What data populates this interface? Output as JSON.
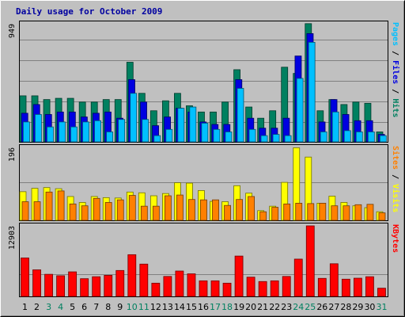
{
  "chart_data": {
    "type": "bar",
    "title": "Daily usage for October 2009",
    "categories": [
      "1",
      "2",
      "3",
      "4",
      "5",
      "6",
      "7",
      "8",
      "9",
      "10",
      "11",
      "12",
      "13",
      "14",
      "15",
      "16",
      "17",
      "18",
      "19",
      "20",
      "21",
      "22",
      "23",
      "24",
      "25",
      "26",
      "27",
      "28",
      "29",
      "30",
      "31"
    ],
    "weekend_days": [
      "3",
      "4",
      "10",
      "11",
      "17",
      "18",
      "24",
      "25",
      "31"
    ],
    "panels": [
      {
        "id": "hits",
        "max_label": "949",
        "ylim": [
          0,
          949
        ],
        "legend": [
          {
            "text": "Pages",
            "color": "#00c0ff"
          },
          {
            "text": " / ",
            "color": "#000000"
          },
          {
            "text": "Files",
            "color": "#0000e0"
          },
          {
            "text": " / ",
            "color": "#000000"
          },
          {
            "text": "Hits",
            "color": "#008060"
          }
        ],
        "series": [
          {
            "name": "Hits",
            "color": "#008060",
            "values": [
              370,
              370,
              340,
              350,
              350,
              320,
              320,
              340,
              340,
              640,
              390,
              250,
              330,
              390,
              290,
              240,
              240,
              320,
              580,
              280,
              190,
              250,
              600,
              550,
              950,
              250,
              340,
              300,
              320,
              310,
              80
            ]
          },
          {
            "name": "Files",
            "color": "#0000e0",
            "values": [
              230,
              300,
              220,
              240,
              240,
              200,
              230,
              240,
              190,
              500,
              320,
              130,
              200,
              270,
              240,
              160,
              140,
              140,
              500,
              190,
              110,
              110,
              190,
              690,
              870,
              160,
              340,
              220,
              170,
              170,
              60
            ]
          },
          {
            "name": "Pages",
            "color": "#00c0ff",
            "values": [
              160,
              220,
              120,
              160,
              120,
              160,
              170,
              80,
              180,
              390,
              180,
              50,
              100,
              270,
              280,
              150,
              100,
              80,
              430,
              100,
              50,
              60,
              50,
              510,
              800,
              80,
              240,
              90,
              80,
              80,
              50
            ]
          }
        ]
      },
      {
        "id": "visits",
        "max_label": "196",
        "ylim": [
          0,
          196
        ],
        "legend": [
          {
            "text": "Sites",
            "color": "#ff8000"
          },
          {
            "text": " / ",
            "color": "#000000"
          },
          {
            "text": "Visits",
            "color": "#ffff00"
          }
        ],
        "series": [
          {
            "name": "Visits",
            "color": "#ffff00",
            "values": [
              77,
              86,
              88,
              85,
              64,
              48,
              64,
              61,
              60,
              76,
              74,
              66,
              72,
              101,
              100,
              80,
              51,
              50,
              93,
              73,
              26,
              38,
              102,
              195,
              170,
              46,
              65,
              48,
              39,
              34,
              23
            ]
          },
          {
            "name": "Sites",
            "color": "#ff8000",
            "values": [
              50,
              50,
              76,
              79,
              44,
              39,
              59,
              48,
              55,
              67,
              38,
              38,
              66,
              68,
              56,
              55,
              55,
              40,
              56,
              64,
              23,
              35,
              44,
              46,
              45,
              46,
              39,
              39,
              42,
              43,
              20
            ]
          }
        ]
      },
      {
        "id": "kbytes",
        "max_label": "12903",
        "ylim": [
          0,
          12903
        ],
        "legend": [
          {
            "text": "KBytes",
            "color": "#ff0000"
          }
        ],
        "series": [
          {
            "name": "KBytes",
            "color": "#ff0000",
            "values": [
              7030,
              4860,
              4040,
              3780,
              4490,
              3240,
              3600,
              3850,
              4740,
              7630,
              5910,
              2420,
              3650,
              4640,
              4130,
              2850,
              2850,
              2420,
              7380,
              3520,
              2720,
              2850,
              3650,
              6820,
              12903,
              3300,
              5970,
              3150,
              3330,
              3600,
              1500
            ]
          }
        ]
      }
    ]
  }
}
